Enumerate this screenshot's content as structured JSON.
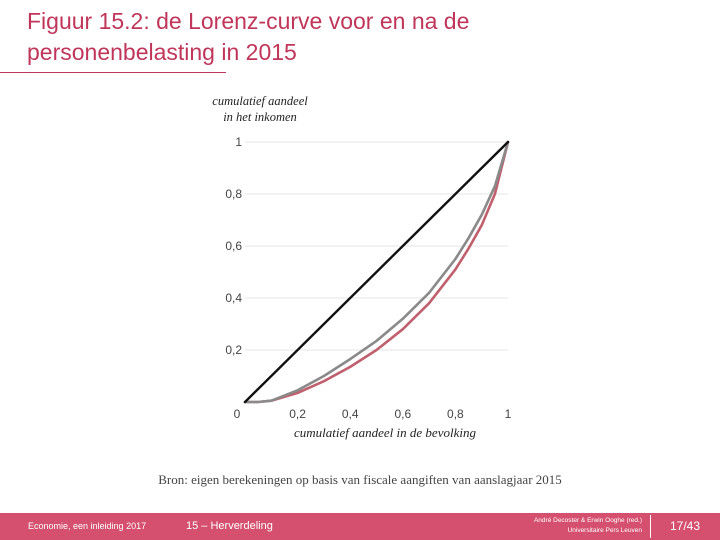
{
  "slide": {
    "title_line1": "Figuur 15.2: de Lorenz-curve voor en na de",
    "title_line2": "personenbelasting in 2015",
    "source": "Bron: eigen berekeningen op basis van fiscale aangiften van aanslagjaar 2015"
  },
  "footer": {
    "book": "Economie, een inleiding 2017",
    "chapter": "15 – Herverdeling",
    "authors_line1": "André Decoster & Erwin Ooghe (red.)",
    "authors_line2": "Universitaire Pers Leuven",
    "page": "17/43"
  },
  "chart_data": {
    "type": "line",
    "title": "",
    "xlabel": "cumulatief aandeel in de bevolking",
    "ylabel_line1": "cumulatief aandeel",
    "ylabel_line2": "in het inkomen",
    "xlim": [
      0,
      1
    ],
    "ylim": [
      0,
      1
    ],
    "x_ticks": [
      {
        "value": 0,
        "label": "0"
      },
      {
        "value": 0.2,
        "label": "0,2"
      },
      {
        "value": 0.4,
        "label": "0,4"
      },
      {
        "value": 0.6,
        "label": "0,6"
      },
      {
        "value": 0.8,
        "label": "0,8"
      },
      {
        "value": 1,
        "label": "1"
      }
    ],
    "y_ticks": [
      {
        "value": 0.2,
        "label": "0,2"
      },
      {
        "value": 0.4,
        "label": "0,4"
      },
      {
        "value": 0.6,
        "label": "0,6"
      },
      {
        "value": 0.8,
        "label": "0,8"
      },
      {
        "value": 1,
        "label": "1"
      }
    ],
    "series": [
      {
        "color": "#c0606e",
        "x": [
          0,
          0.05,
          0.1,
          0.2,
          0.3,
          0.4,
          0.5,
          0.6,
          0.7,
          0.8,
          0.85,
          0.9,
          0.95,
          1
        ],
        "y": [
          0,
          0,
          0.005,
          0.035,
          0.08,
          0.135,
          0.2,
          0.28,
          0.38,
          0.51,
          0.59,
          0.68,
          0.8,
          1
        ]
      },
      {
        "color": "#8a8a8a",
        "x": [
          0,
          0.05,
          0.1,
          0.2,
          0.3,
          0.4,
          0.5,
          0.6,
          0.7,
          0.8,
          0.85,
          0.9,
          0.95,
          1
        ],
        "y": [
          0,
          0,
          0.005,
          0.045,
          0.1,
          0.165,
          0.235,
          0.32,
          0.42,
          0.55,
          0.63,
          0.72,
          0.83,
          1
        ]
      },
      {
        "color": "#111111",
        "x": [
          0,
          1
        ],
        "y": [
          0,
          1
        ]
      }
    ]
  },
  "colors": {
    "accent": "#c0365a",
    "footer_bg": "#d5506f"
  }
}
